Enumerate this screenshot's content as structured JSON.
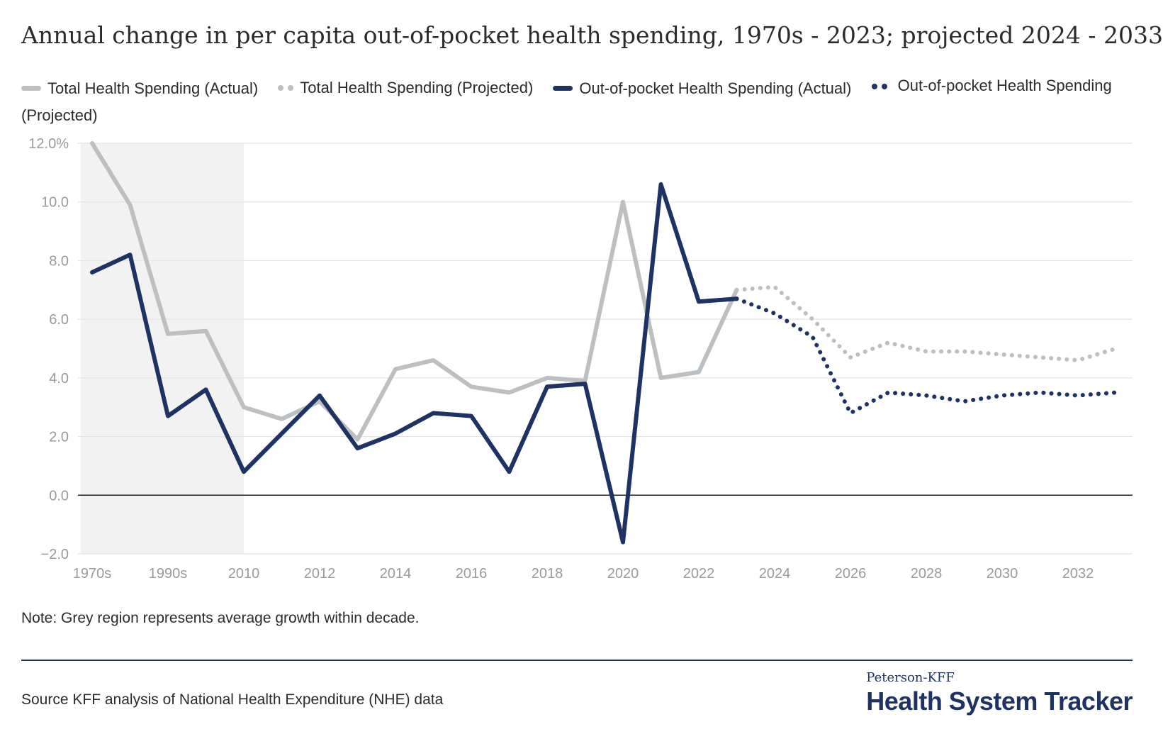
{
  "title": "Annual change in per capita out-of-pocket health spending, 1970s - 2023; projected 2024 - 2033",
  "legend": [
    {
      "label": "Total Health Spending (Actual)",
      "color": "#bcc0c3",
      "style": "solid"
    },
    {
      "label": "Total Health Spending (Projected)",
      "color": "#bcc0c3",
      "style": "dotted"
    },
    {
      "label": "Out-of-pocket Health Spending (Actual)",
      "color": "#1e3264",
      "style": "solid"
    },
    {
      "label": "Out-of-pocket Health Spending (Projected)",
      "color": "#1e3264",
      "style": "dotted"
    }
  ],
  "note": "Note: Grey region represents average growth within decade.",
  "source": "Source KFF analysis of National Health Expenditure (NHE) data",
  "brand": {
    "small": "Peterson-KFF",
    "big": "Health System Tracker"
  },
  "chart_data": {
    "type": "line",
    "x_categories": [
      "1970s",
      "1980s",
      "1990s",
      "2000s",
      "2010",
      "2011",
      "2012",
      "2013",
      "2014",
      "2015",
      "2016",
      "2017",
      "2018",
      "2019",
      "2020",
      "2021",
      "2022",
      "2023",
      "2024",
      "2025",
      "2026",
      "2027",
      "2028",
      "2029",
      "2030",
      "2031",
      "2032",
      "2033"
    ],
    "x_tick_labels": [
      {
        "index": 0,
        "label": "1970s"
      },
      {
        "index": 2,
        "label": "1990s"
      },
      {
        "index": 4,
        "label": "2010"
      },
      {
        "index": 6,
        "label": "2012"
      },
      {
        "index": 8,
        "label": "2014"
      },
      {
        "index": 10,
        "label": "2016"
      },
      {
        "index": 12,
        "label": "2018"
      },
      {
        "index": 14,
        "label": "2020"
      },
      {
        "index": 16,
        "label": "2022"
      },
      {
        "index": 18,
        "label": "2024"
      },
      {
        "index": 20,
        "label": "2026"
      },
      {
        "index": 22,
        "label": "2028"
      },
      {
        "index": 24,
        "label": "2030"
      },
      {
        "index": 26,
        "label": "2032"
      }
    ],
    "y_ticks": [
      {
        "value": 12,
        "label": "12.0%"
      },
      {
        "value": 10,
        "label": "10.0"
      },
      {
        "value": 8,
        "label": "8.0"
      },
      {
        "value": 6,
        "label": "6.0"
      },
      {
        "value": 4,
        "label": "4.0"
      },
      {
        "value": 2,
        "label": "2.0"
      },
      {
        "value": 0,
        "label": "0.0"
      },
      {
        "value": -2,
        "label": "−2.0"
      }
    ],
    "ylim": [
      -2,
      12
    ],
    "shaded_region": {
      "from_index": -0.3,
      "to_index": 4,
      "color": "#f2f2f2"
    },
    "grid": true,
    "series": [
      {
        "name": "Total Health Spending (Actual)",
        "color": "#bcc0c3",
        "style": "solid",
        "start_index": 0,
        "values": [
          12.0,
          9.9,
          5.5,
          5.6,
          3.0,
          2.6,
          3.2,
          1.9,
          4.3,
          4.6,
          3.7,
          3.5,
          4.0,
          3.9,
          10.0,
          4.0,
          4.2,
          7.0
        ]
      },
      {
        "name": "Total Health Spending (Projected)",
        "color": "#bcc0c3",
        "style": "dotted",
        "start_index": 17,
        "values": [
          7.0,
          7.1,
          6.0,
          4.7,
          5.2,
          4.9,
          4.9,
          4.8,
          4.7,
          4.6,
          5.0
        ]
      },
      {
        "name": "Out-of-pocket Health Spending (Actual)",
        "color": "#1e3264",
        "style": "solid",
        "start_index": 0,
        "values": [
          7.6,
          8.2,
          2.7,
          3.6,
          0.8,
          2.1,
          3.4,
          1.6,
          2.1,
          2.8,
          2.7,
          0.8,
          3.7,
          3.8,
          -1.6,
          10.6,
          6.6,
          6.7
        ]
      },
      {
        "name": "Out-of-pocket Health Spending (Projected)",
        "color": "#1e3264",
        "style": "dotted",
        "start_index": 17,
        "values": [
          6.7,
          6.2,
          5.4,
          2.8,
          3.5,
          3.4,
          3.2,
          3.4,
          3.5,
          3.4,
          3.5
        ]
      }
    ]
  }
}
